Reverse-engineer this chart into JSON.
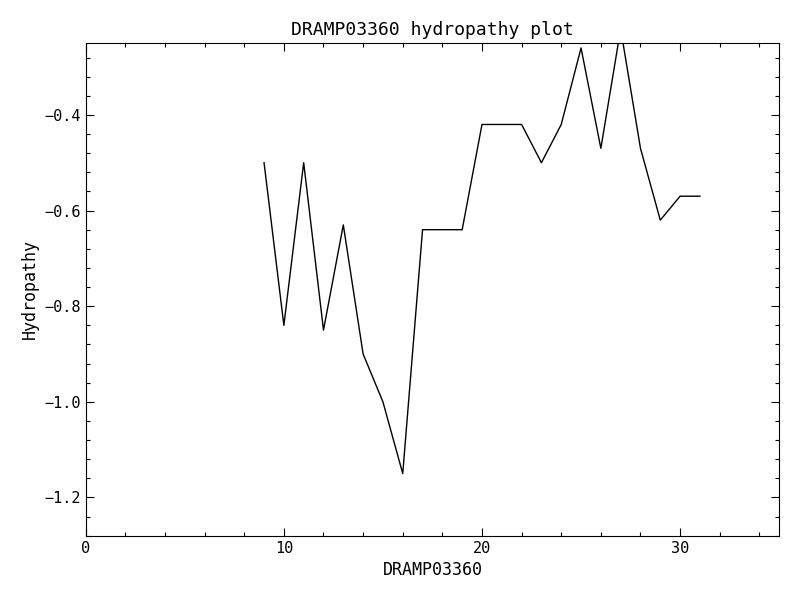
{
  "title": "DRAMP03360 hydropathy plot",
  "xlabel": "DRAMP03360",
  "ylabel": "Hydropathy",
  "x": [
    9,
    10,
    11,
    12,
    13,
    14,
    15,
    16,
    17,
    18,
    19,
    20,
    21,
    22,
    23,
    24,
    25,
    26,
    27,
    28,
    29,
    30,
    31
  ],
  "y": [
    -0.5,
    -0.84,
    -0.5,
    -0.85,
    -0.63,
    -0.9,
    -1.0,
    -1.15,
    -0.64,
    -0.64,
    -0.64,
    -0.42,
    -0.42,
    -0.42,
    -0.5,
    -0.42,
    -0.26,
    -0.47,
    -0.22,
    -0.47,
    -0.62,
    -0.57,
    -0.57
  ],
  "xlim": [
    0,
    35
  ],
  "ylim": [
    -1.28,
    -0.25
  ],
  "xticks": [
    0,
    10,
    20,
    30
  ],
  "yticks": [
    -1.2,
    -1.0,
    -0.8,
    -0.6,
    -0.4
  ],
  "line_color": "black",
  "line_width": 1.0,
  "bg_color": "white",
  "title_fontsize": 13,
  "label_fontsize": 12,
  "tick_fontsize": 11
}
